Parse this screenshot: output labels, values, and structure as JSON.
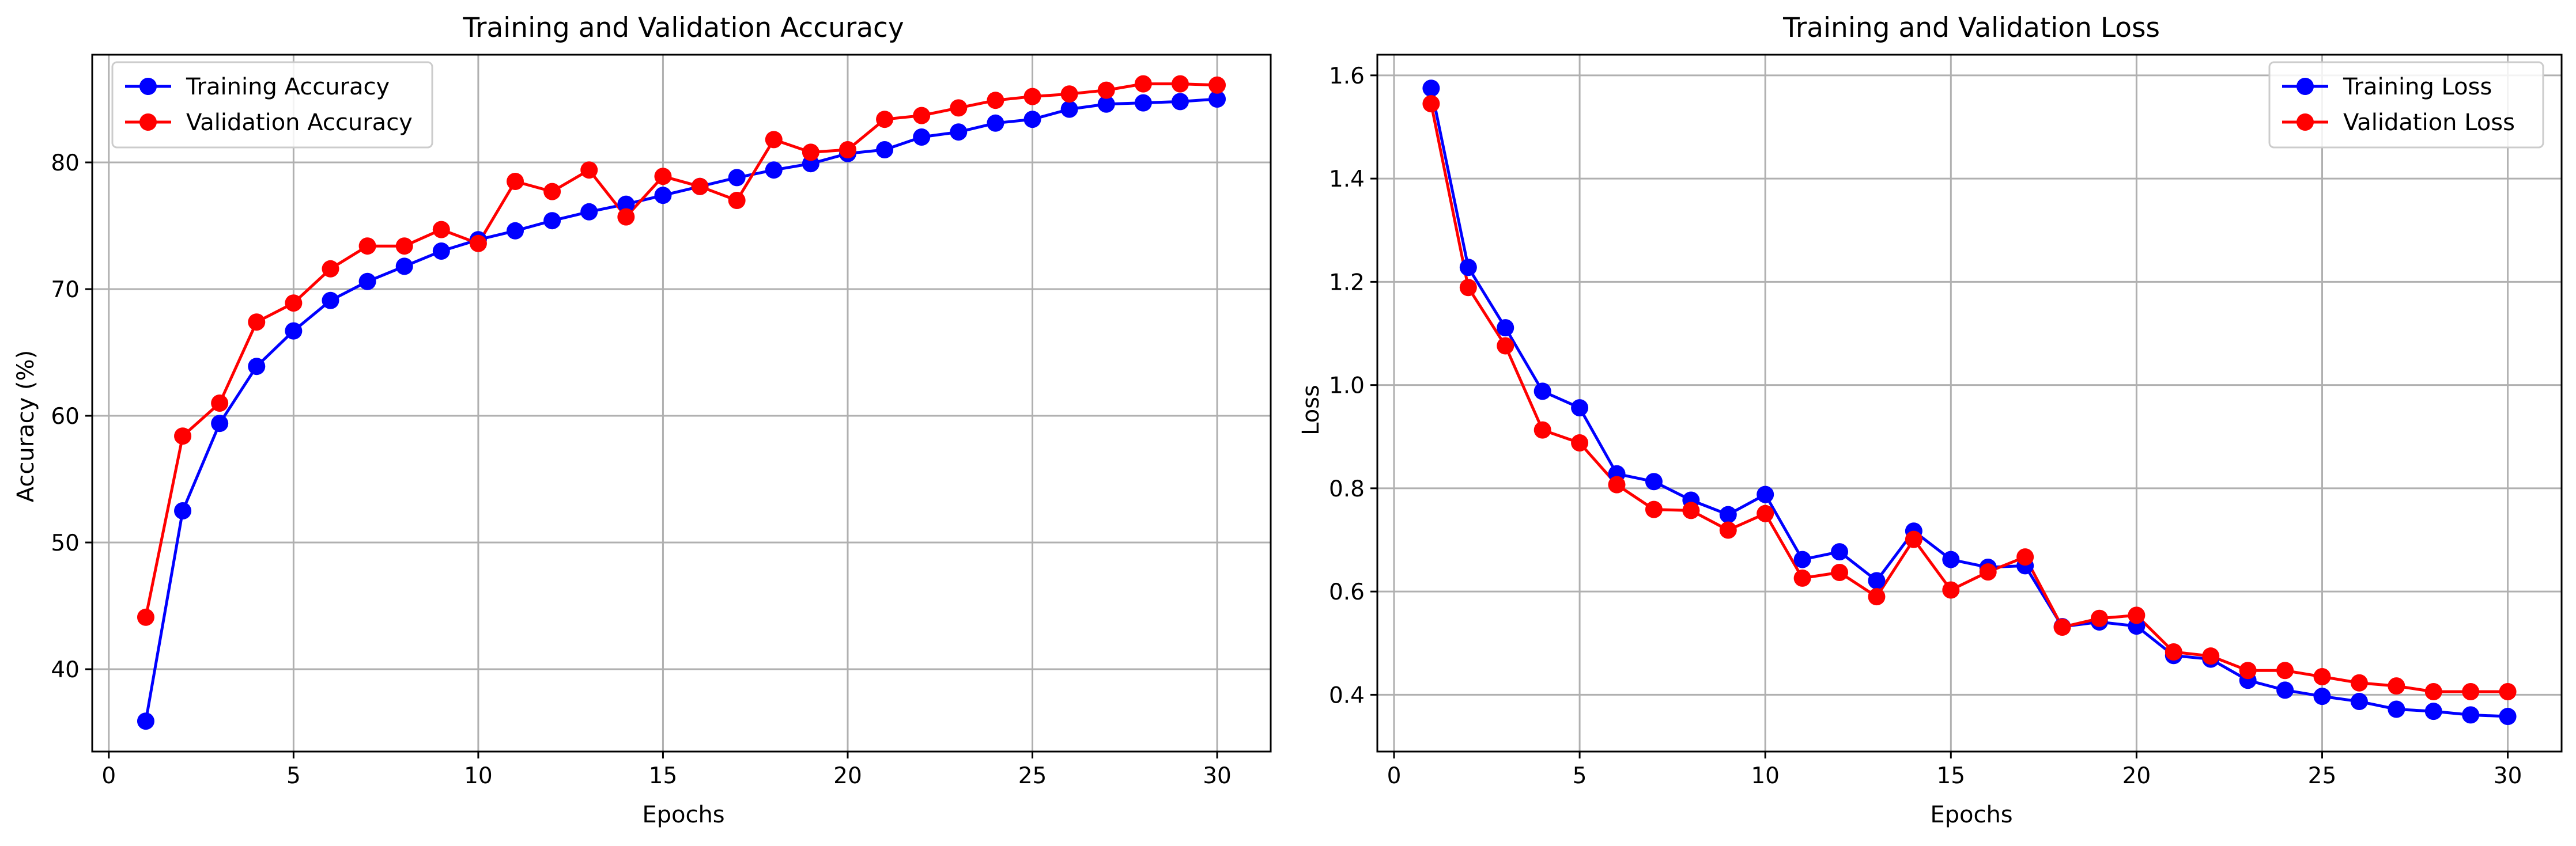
{
  "chart_data": [
    {
      "type": "line",
      "title": "Training and Validation Accuracy",
      "xlabel": "Epochs",
      "ylabel": "Accuracy (%)",
      "xlim": [
        -0.45,
        31.45
      ],
      "ylim": [
        33.5,
        88.5
      ],
      "xticks": [
        0,
        5,
        10,
        15,
        20,
        25,
        30
      ],
      "yticks": [
        40,
        50,
        60,
        70,
        80
      ],
      "grid": true,
      "legend": "top-left",
      "x": [
        1,
        2,
        3,
        4,
        5,
        6,
        7,
        8,
        9,
        10,
        11,
        12,
        13,
        14,
        15,
        16,
        17,
        18,
        19,
        20,
        21,
        22,
        23,
        24,
        25,
        26,
        27,
        28,
        29,
        30
      ],
      "series": [
        {
          "name": "Training Accuracy",
          "color": "#0000ff",
          "values": [
            35.9,
            52.5,
            59.4,
            63.9,
            66.7,
            69.1,
            70.6,
            71.8,
            73.0,
            73.9,
            74.6,
            75.4,
            76.1,
            76.7,
            77.4,
            78.1,
            78.8,
            79.4,
            79.9,
            80.7,
            81.0,
            82.0,
            82.4,
            83.1,
            83.4,
            84.2,
            84.6,
            84.7,
            84.8,
            85.0
          ]
        },
        {
          "name": "Validation Accuracy",
          "color": "#ff0000",
          "values": [
            44.1,
            58.4,
            61.0,
            67.4,
            68.9,
            71.6,
            73.4,
            73.4,
            74.7,
            73.6,
            78.5,
            77.7,
            79.4,
            75.7,
            78.9,
            78.1,
            77.0,
            81.8,
            80.8,
            81.0,
            83.4,
            83.7,
            84.3,
            84.9,
            85.2,
            85.4,
            85.7,
            86.2,
            86.2,
            86.1
          ]
        }
      ]
    },
    {
      "type": "line",
      "title": "Training and Validation Loss",
      "xlabel": "Epochs",
      "ylabel": "Loss",
      "xlim": [
        -0.45,
        31.45
      ],
      "ylim": [
        0.29,
        1.64
      ],
      "xticks": [
        0,
        5,
        10,
        15,
        20,
        25,
        30
      ],
      "yticks": [
        0.4,
        0.6,
        0.8,
        1.0,
        1.2,
        1.4,
        1.6
      ],
      "ytick_labels": [
        "0.4",
        "0.6",
        "0.8",
        "1.0",
        "1.2",
        "1.4",
        "1.6"
      ],
      "grid": true,
      "legend": "top-right",
      "x": [
        1,
        2,
        3,
        4,
        5,
        6,
        7,
        8,
        9,
        10,
        11,
        12,
        13,
        14,
        15,
        16,
        17,
        18,
        19,
        20,
        21,
        22,
        23,
        24,
        25,
        26,
        27,
        28,
        29,
        30
      ],
      "series": [
        {
          "name": "Training Loss",
          "color": "#0000ff",
          "values": [
            1.575,
            1.228,
            1.111,
            0.988,
            0.956,
            0.828,
            0.813,
            0.777,
            0.749,
            0.788,
            0.662,
            0.677,
            0.621,
            0.717,
            0.662,
            0.647,
            0.65,
            0.532,
            0.541,
            0.533,
            0.476,
            0.469,
            0.428,
            0.409,
            0.397,
            0.387,
            0.372,
            0.368,
            0.361,
            0.358
          ]
        },
        {
          "name": "Validation Loss",
          "color": "#ff0000",
          "values": [
            1.545,
            1.189,
            1.076,
            0.913,
            0.888,
            0.807,
            0.759,
            0.757,
            0.719,
            0.751,
            0.626,
            0.637,
            0.59,
            0.701,
            0.603,
            0.638,
            0.667,
            0.531,
            0.548,
            0.554,
            0.483,
            0.475,
            0.447,
            0.447,
            0.435,
            0.423,
            0.417,
            0.406,
            0.406,
            0.406
          ]
        }
      ]
    }
  ]
}
